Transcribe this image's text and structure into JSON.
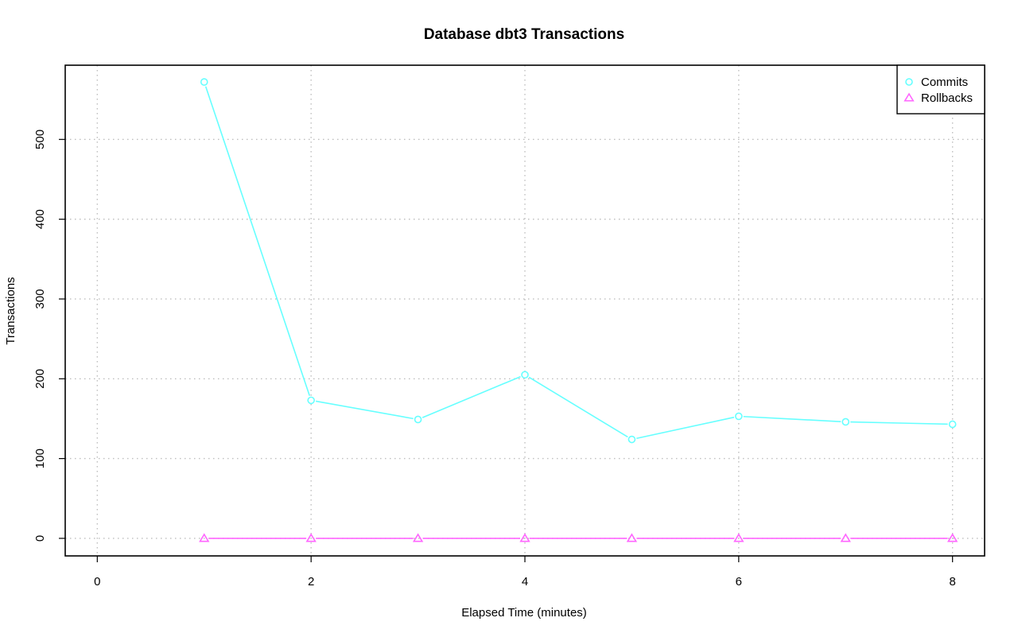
{
  "chart_data": {
    "type": "line",
    "title": "Database dbt3 Transactions",
    "xlabel": "Elapsed Time (minutes)",
    "ylabel": "Transactions",
    "xlim": [
      -0.3,
      8.3
    ],
    "ylim": [
      -22,
      593
    ],
    "x_ticks": [
      0,
      2,
      4,
      6,
      8
    ],
    "y_ticks": [
      0,
      100,
      200,
      300,
      400,
      500
    ],
    "grid": true,
    "legend_position": "top-right",
    "x": [
      1,
      2,
      3,
      4,
      5,
      6,
      7,
      8
    ],
    "series": [
      {
        "name": "Commits",
        "marker": "circle",
        "color": "#66ffff",
        "values": [
          572,
          173,
          149,
          205,
          124,
          153,
          146,
          143
        ]
      },
      {
        "name": "Rollbacks",
        "marker": "triangle",
        "color": "#ff66ff",
        "values": [
          0,
          0,
          0,
          0,
          0,
          0,
          0,
          0
        ]
      }
    ]
  }
}
